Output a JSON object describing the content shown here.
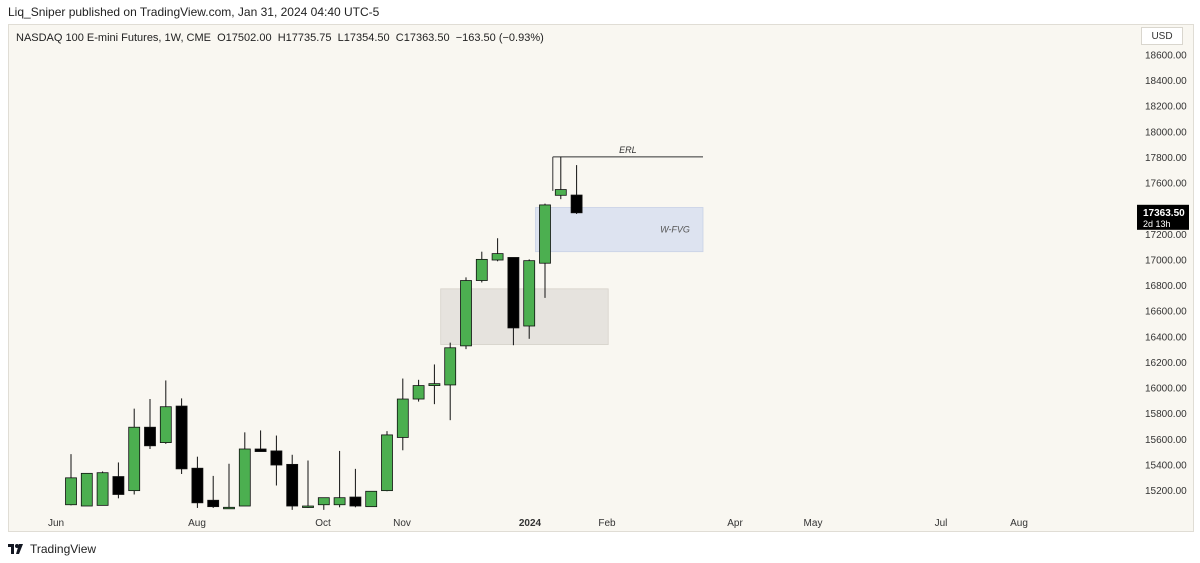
{
  "header": {
    "published_by": "Liq_Sniper published on TradingView.com, Jan 31, 2024 04:40 UTC-5"
  },
  "legend": {
    "symbol": "NASDAQ 100 E-mini Futures, 1W, CME",
    "open": "O17502.00",
    "high": "H17735.75",
    "low": "L17354.50",
    "close": "C17363.50",
    "change": "−163.50 (−0.93%)"
  },
  "currency_button": "USD",
  "footer": {
    "brand": "TradingView"
  },
  "colors": {
    "up": "#4caf50",
    "down": "#000000",
    "background": "#f9f7f1",
    "fvg_zone": "#dde3f0",
    "gray_zone": "#e6e3de",
    "price_tag": "#000000"
  },
  "chart_data": {
    "type": "candlestick",
    "y_axis": {
      "range": [
        15050,
        18750
      ],
      "ticks": [
        "15200.00",
        "15400.00",
        "15600.00",
        "15800.00",
        "16000.00",
        "16200.00",
        "16400.00",
        "16600.00",
        "16800.00",
        "17000.00",
        "17200.00",
        "17400.00",
        "17600.00",
        "17800.00",
        "18000.00",
        "18200.00",
        "18400.00",
        "18600.00"
      ],
      "position": "right"
    },
    "x_axis": {
      "labels": [
        "Jun",
        "Aug",
        "Oct",
        "Nov",
        "2024",
        "Feb",
        "Apr",
        "May",
        "Jul",
        "Aug"
      ],
      "bold_labels": [
        "2024"
      ]
    },
    "candles": [
      {
        "o": 15085,
        "h": 15480,
        "l": 15080,
        "c": 15295
      },
      {
        "o": 15075,
        "h": 15315,
        "l": 15075,
        "c": 15330
      },
      {
        "o": 15080,
        "h": 15345,
        "l": 15080,
        "c": 15335
      },
      {
        "o": 15305,
        "h": 15415,
        "l": 15135,
        "c": 15165
      },
      {
        "o": 15195,
        "h": 15835,
        "l": 15165,
        "c": 15690
      },
      {
        "o": 15690,
        "h": 15910,
        "l": 15520,
        "c": 15545
      },
      {
        "o": 15570,
        "h": 16055,
        "l": 15560,
        "c": 15850
      },
      {
        "o": 15855,
        "h": 15915,
        "l": 15325,
        "c": 15365
      },
      {
        "o": 15370,
        "h": 15460,
        "l": 15060,
        "c": 15100
      },
      {
        "o": 15120,
        "h": 15310,
        "l": 15060,
        "c": 15070
      },
      {
        "o": 15060,
        "h": 15405,
        "l": 15060,
        "c": 15065
      },
      {
        "o": 15075,
        "h": 15650,
        "l": 15075,
        "c": 15520
      },
      {
        "o": 15520,
        "h": 15665,
        "l": 15500,
        "c": 15500
      },
      {
        "o": 15505,
        "h": 15625,
        "l": 15235,
        "c": 15395
      },
      {
        "o": 15400,
        "h": 15475,
        "l": 15045,
        "c": 15075
      },
      {
        "o": 15070,
        "h": 15430,
        "l": 15060,
        "c": 15075
      },
      {
        "o": 15085,
        "h": 15140,
        "l": 15045,
        "c": 15140
      },
      {
        "o": 15085,
        "h": 15505,
        "l": 15065,
        "c": 15140
      },
      {
        "o": 15145,
        "h": 15365,
        "l": 15065,
        "c": 15075
      },
      {
        "o": 15070,
        "h": 15180,
        "l": 15070,
        "c": 15190
      },
      {
        "o": 15195,
        "h": 15660,
        "l": 15190,
        "c": 15630
      },
      {
        "o": 15610,
        "h": 16070,
        "l": 15510,
        "c": 15910
      },
      {
        "o": 15910,
        "h": 16060,
        "l": 15890,
        "c": 16015
      },
      {
        "o": 16015,
        "h": 16180,
        "l": 15870,
        "c": 16030
      },
      {
        "o": 16020,
        "h": 16350,
        "l": 15745,
        "c": 16310
      },
      {
        "o": 16325,
        "h": 16860,
        "l": 16300,
        "c": 16835
      },
      {
        "o": 16835,
        "h": 17060,
        "l": 16820,
        "c": 17000
      },
      {
        "o": 16995,
        "h": 17165,
        "l": 16985,
        "c": 17045
      },
      {
        "o": 17015,
        "h": 17015,
        "l": 16330,
        "c": 16465
      },
      {
        "o": 16480,
        "h": 17000,
        "l": 16380,
        "c": 16990
      },
      {
        "o": 16970,
        "h": 17435,
        "l": 16700,
        "c": 17425
      },
      {
        "o": 17500,
        "h": 17800,
        "l": 17470,
        "c": 17545
      },
      {
        "o": 17502,
        "h": 17735.75,
        "l": 17354.5,
        "c": 17363.5
      }
    ],
    "zones": [
      {
        "label": "W-FVG",
        "from_candle": 30,
        "to_index": 40,
        "low": 17060,
        "high": 17405
      },
      {
        "label": "",
        "from_candle": 24,
        "to_index": 34,
        "low": 16335,
        "high": 16770
      }
    ],
    "annotations": [
      {
        "label": "ERL",
        "price": 17800,
        "from_candle": 31,
        "to_index": 40
      }
    ],
    "last_price": {
      "value": "17363.50",
      "countdown": "2d 13h"
    }
  }
}
